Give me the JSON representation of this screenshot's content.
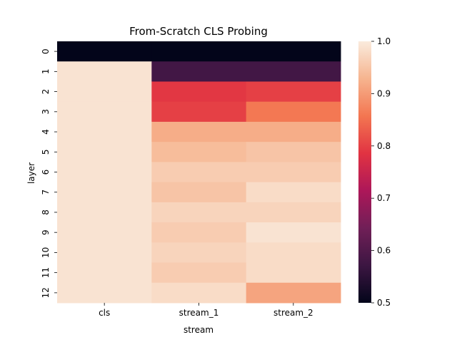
{
  "chart_data": {
    "type": "heatmap",
    "title": "From-Scratch CLS Probing",
    "xlabel": "stream",
    "ylabel": "layer",
    "columns": [
      "cls",
      "stream_1",
      "stream_2"
    ],
    "rows": [
      "0",
      "1",
      "2",
      "3",
      "4",
      "5",
      "6",
      "7",
      "8",
      "9",
      "10",
      "11",
      "12"
    ],
    "values": [
      [
        0.5,
        0.5,
        0.5
      ],
      [
        0.99,
        0.58,
        0.58
      ],
      [
        0.99,
        0.79,
        0.8
      ],
      [
        0.99,
        0.8,
        0.86
      ],
      [
        0.99,
        0.92,
        0.92
      ],
      [
        0.99,
        0.94,
        0.95
      ],
      [
        0.99,
        0.96,
        0.96
      ],
      [
        0.99,
        0.95,
        0.98
      ],
      [
        0.99,
        0.97,
        0.97
      ],
      [
        0.99,
        0.96,
        0.99
      ],
      [
        0.99,
        0.97,
        0.98
      ],
      [
        0.99,
        0.96,
        0.98
      ],
      [
        0.99,
        0.98,
        0.91
      ]
    ],
    "vmin": 0.5,
    "vmax": 1.0,
    "colorbar_ticks": [
      "0.5",
      "0.6",
      "0.7",
      "0.8",
      "0.9",
      "1.0"
    ],
    "colormap": "rocket",
    "colormap_stops": [
      "#03051a",
      "#3c1642",
      "#701f57",
      "#ad1759",
      "#e13342",
      "#f37651",
      "#f6b48f",
      "#faebdd"
    ]
  }
}
